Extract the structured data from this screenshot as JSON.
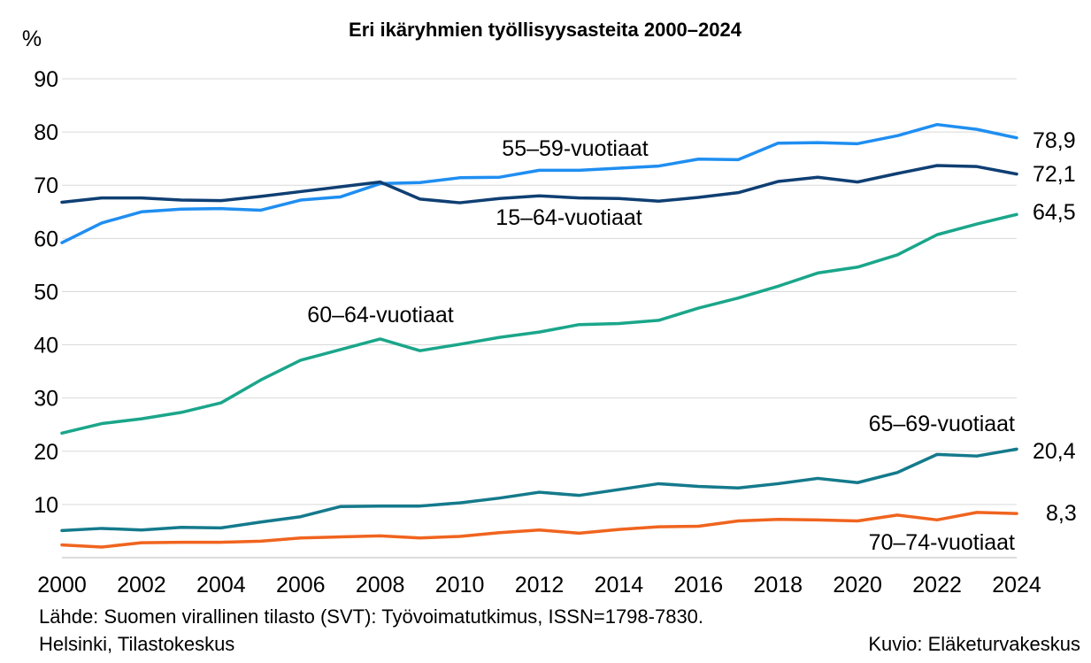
{
  "chart_data": {
    "type": "line",
    "title": "Eri ikäryhmien työllisyysasteita 2000–2024",
    "ylabel": "%",
    "xlabel": "",
    "ylim": [
      0,
      90
    ],
    "yticks": [
      "10",
      "20",
      "30",
      "40",
      "50",
      "60",
      "70",
      "80",
      "90"
    ],
    "xlim": [
      2000,
      2024
    ],
    "xticks": [
      "2000",
      "2002",
      "2004",
      "2006",
      "2008",
      "2010",
      "2012",
      "2014",
      "2016",
      "2018",
      "2020",
      "2022",
      "2024"
    ],
    "x": [
      2000,
      2001,
      2002,
      2003,
      2004,
      2005,
      2006,
      2007,
      2008,
      2009,
      2010,
      2011,
      2012,
      2013,
      2014,
      2015,
      2016,
      2017,
      2018,
      2019,
      2020,
      2021,
      2022,
      2023,
      2024
    ],
    "grid": "horizontal",
    "series": [
      {
        "name": "55–59-vuotiaat",
        "color": "#1f8ef1",
        "end_label": "78,9",
        "values": [
          59.2,
          62.9,
          65.0,
          65.5,
          65.6,
          65.3,
          67.2,
          67.8,
          70.3,
          70.5,
          71.4,
          71.5,
          72.8,
          72.8,
          73.2,
          73.6,
          74.9,
          74.8,
          77.9,
          78.0,
          77.8,
          79.3,
          81.4,
          80.5,
          78.9
        ]
      },
      {
        "name": "15–64-vuotiaat",
        "color": "#0f3f73",
        "end_label": "72,1",
        "values": [
          66.8,
          67.6,
          67.6,
          67.2,
          67.1,
          67.9,
          68.8,
          69.7,
          70.6,
          67.4,
          66.7,
          67.5,
          68.0,
          67.6,
          67.5,
          67.0,
          67.7,
          68.6,
          70.7,
          71.5,
          70.6,
          72.2,
          73.7,
          73.5,
          72.1
        ]
      },
      {
        "name": "60–64-vuotiaat",
        "color": "#1aa68a",
        "end_label": "64,5",
        "values": [
          23.4,
          25.2,
          26.1,
          27.3,
          29.1,
          33.4,
          37.1,
          39.1,
          41.1,
          38.9,
          40.1,
          41.4,
          42.4,
          43.8,
          44.0,
          44.6,
          46.9,
          48.8,
          51.0,
          53.5,
          54.6,
          56.9,
          60.7,
          62.7,
          64.5
        ]
      },
      {
        "name": "65–69-vuotiaat",
        "color": "#147a8c",
        "end_label": "20,4",
        "values": [
          5.1,
          5.5,
          5.2,
          5.7,
          5.6,
          6.7,
          7.7,
          9.6,
          9.7,
          9.7,
          10.3,
          11.2,
          12.3,
          11.7,
          12.8,
          13.9,
          13.4,
          13.1,
          13.9,
          14.9,
          14.1,
          16.0,
          19.4,
          19.1,
          20.4
        ]
      },
      {
        "name": "70–74-vuotiaat",
        "color": "#f0641e",
        "end_label": "8,3",
        "values": [
          2.4,
          2.0,
          2.8,
          2.9,
          2.9,
          3.1,
          3.7,
          3.9,
          4.1,
          3.7,
          4.0,
          4.7,
          5.2,
          4.6,
          5.3,
          5.8,
          5.9,
          6.9,
          7.2,
          7.1,
          6.9,
          8.0,
          7.1,
          8.5,
          8.3
        ]
      }
    ]
  },
  "source": {
    "line1": "Lähde: Suomen virallinen tilasto (SVT): Työvoimatutkimus, ISSN=1798-7830.",
    "line2": "Helsinki, Tilastokeskus",
    "credit": "Kuvio: Eläketurvakeskus"
  }
}
